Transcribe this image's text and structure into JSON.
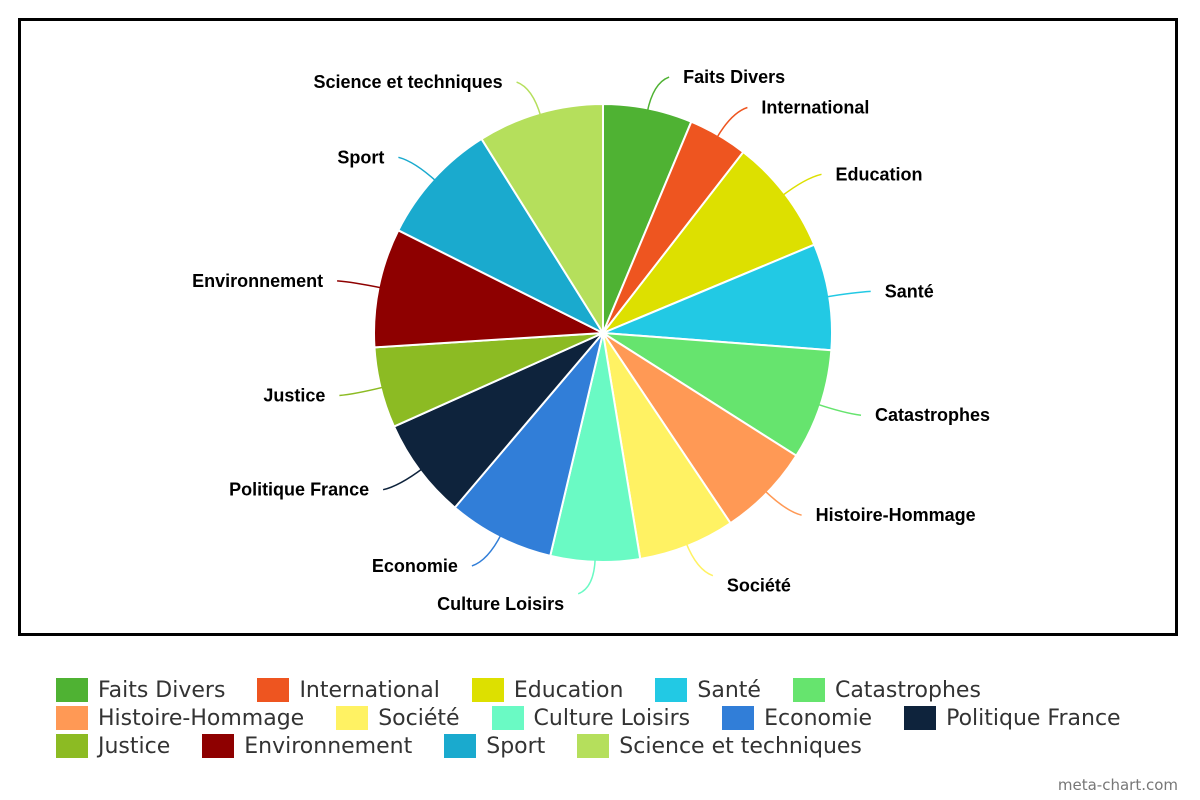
{
  "chart_data": {
    "type": "pie",
    "title": "",
    "categories": [
      "Faits Divers",
      "International",
      "Education",
      "Santé",
      "Catastrophes",
      "Histoire-Hommage",
      "Société",
      "Culture Loisirs",
      "Economie",
      "Politique France",
      "Justice",
      "Environnement",
      "Sport",
      "Science et techniques"
    ],
    "values": [
      6.3,
      4.2,
      8.2,
      7.5,
      7.8,
      6.6,
      6.8,
      6.3,
      7.5,
      7.1,
      5.7,
      8.4,
      8.7,
      8.9
    ],
    "unit": "percent",
    "colors": [
      "#4fb233",
      "#ee5520",
      "#dde000",
      "#22c9e4",
      "#66e46e",
      "#ff9955",
      "#fff263",
      "#6afac4",
      "#317ed8",
      "#0e233c",
      "#8cbb23",
      "#8e0000",
      "#1aaace",
      "#b5df5c"
    ],
    "legend_position": "bottom",
    "start_angle_deg": 0,
    "direction": "clockwise"
  },
  "watermark": "meta-chart.com"
}
